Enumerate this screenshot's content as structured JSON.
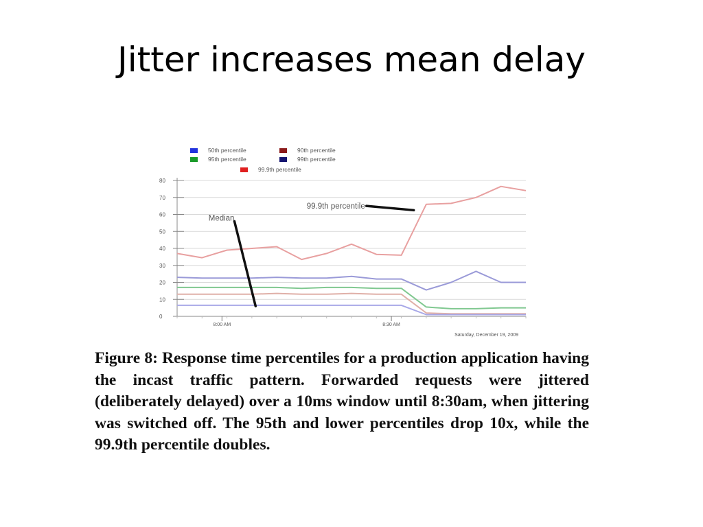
{
  "slide": {
    "title": "Jitter increases mean delay"
  },
  "caption": {
    "text": "Figure 8: Response time percentiles for a production application having the incast traffic pattern. Forwarded requests were jittered (deliberately delayed) over a 10ms window until 8:30am, when jittering was switched off. The 95th and lower percentiles drop 10x, while the 99.9th percentile doubles."
  },
  "chart_data": {
    "type": "line",
    "x_tick_labels": [
      "8:00 AM",
      "8:30 AM"
    ],
    "date_label": "Saturday, December 19, 2009",
    "ylim": [
      0,
      80
    ],
    "y_ticks": [
      0,
      10,
      20,
      30,
      40,
      50,
      60,
      70,
      80
    ],
    "grid": true,
    "legend_position": "top",
    "legend": [
      {
        "name": "50th percentile",
        "color": "#2233dd"
      },
      {
        "name": "90th percentile",
        "color": "#8b1a1a"
      },
      {
        "name": "95th percentile",
        "color": "#1a9a2a"
      },
      {
        "name": "99th percentile",
        "color": "#141470"
      },
      {
        "name": "99.9th percentile",
        "color": "#e02020"
      }
    ],
    "x_points": 15,
    "series": [
      {
        "name": "99.9th percentile",
        "color": "#e8a0a0",
        "values": [
          37,
          34.5,
          39,
          40,
          41,
          33.5,
          37,
          42.5,
          36.5,
          36,
          66,
          66.5,
          70,
          76.5,
          74
        ]
      },
      {
        "name": "99th percentile",
        "color": "#9a9ad8",
        "values": [
          23,
          22.5,
          22.5,
          22.5,
          23,
          22.5,
          22.5,
          23.5,
          22,
          22,
          15.5,
          20,
          26.5,
          20,
          20
        ]
      },
      {
        "name": "95th percentile",
        "color": "#80c890",
        "values": [
          17,
          17,
          17,
          17,
          17,
          16.5,
          17,
          17,
          16.5,
          16.5,
          5.5,
          4.5,
          4.5,
          5,
          5
        ]
      },
      {
        "name": "90th percentile",
        "color": "#e0b0a8",
        "values": [
          13,
          13,
          13,
          13,
          13.5,
          13,
          13,
          13.5,
          13,
          13,
          2,
          1.5,
          1.5,
          1.5,
          1.5
        ]
      },
      {
        "name": "50th percentile",
        "color": "#a8a8e8",
        "values": [
          6.5,
          6.5,
          6.5,
          6.5,
          6.5,
          6.5,
          6.5,
          6.5,
          6.5,
          6.5,
          1,
          1,
          1,
          1,
          1
        ]
      }
    ],
    "annotations": [
      {
        "text": "Median",
        "from": [
          2.3,
          56
        ],
        "to": [
          3.15,
          6
        ]
      },
      {
        "text": "99.9th percentile",
        "from": [
          7.6,
          65
        ],
        "to": [
          9.5,
          62.5
        ]
      }
    ]
  }
}
